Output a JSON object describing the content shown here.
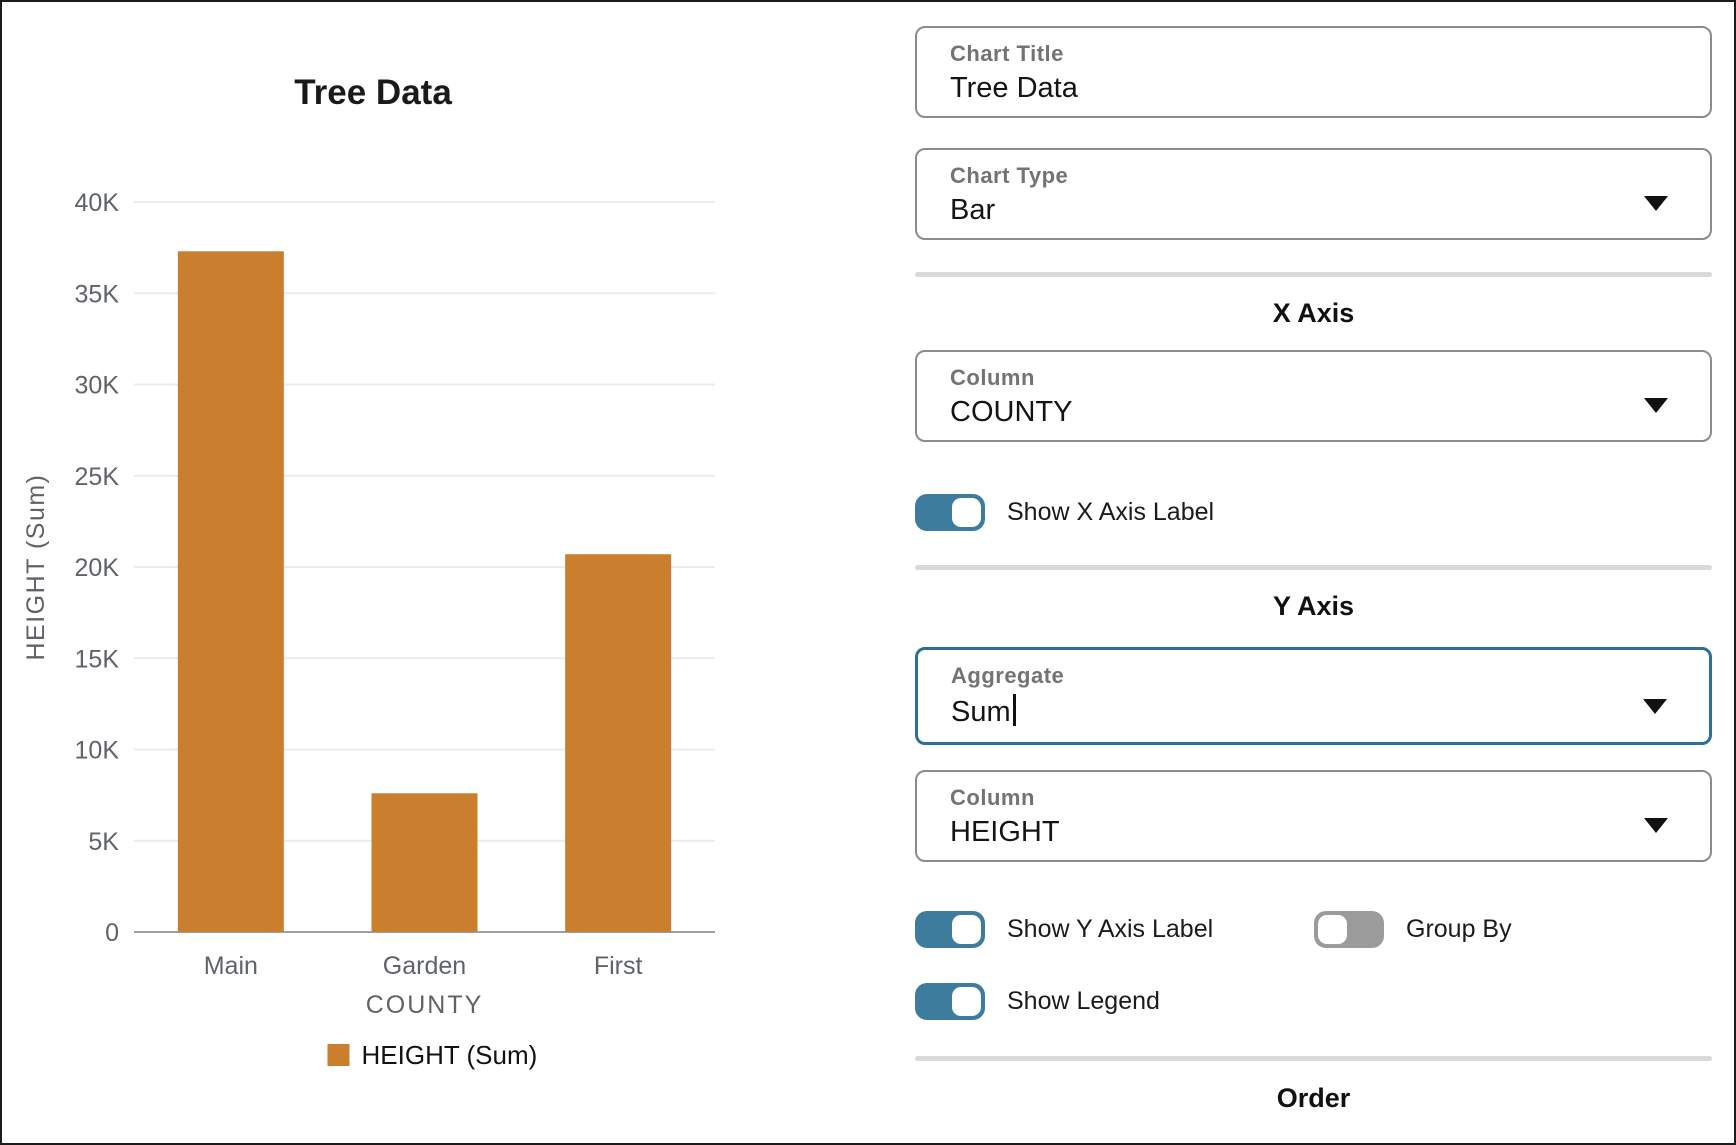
{
  "chart_data": {
    "type": "bar",
    "title": "Tree Data",
    "categories": [
      "Main",
      "Garden",
      "First"
    ],
    "series": [
      {
        "name": "HEIGHT (Sum)",
        "values": [
          37300,
          7600,
          20700
        ]
      }
    ],
    "xlabel": "COUNTY",
    "ylabel": "HEIGHT (Sum)",
    "ylim": [
      0,
      40000
    ],
    "ytick_step": 5000,
    "ytick_labels": [
      "0",
      "5K",
      "10K",
      "15K",
      "20K",
      "25K",
      "30K",
      "35K",
      "40K"
    ],
    "grid": true,
    "legend_position": "bottom",
    "bar_color": "#C97F2E",
    "grid_color": "#e9ebee",
    "axis_line_color": "#9aa0a6",
    "tick_label_color": "#5f6368",
    "title_color": "#1a1a1a",
    "legend_text_color": "#111111"
  },
  "panel": {
    "chart_title": {
      "label": "Chart Title",
      "value": "Tree Data"
    },
    "chart_type": {
      "label": "Chart Type",
      "value": "Bar"
    },
    "x_axis": {
      "heading": "X Axis",
      "column": {
        "label": "Column",
        "value": "COUNTY"
      },
      "show_label_toggle": {
        "label": "Show X Axis Label",
        "state": true
      }
    },
    "y_axis": {
      "heading": "Y Axis",
      "aggregate": {
        "label": "Aggregate",
        "value": "Sum",
        "focused": true
      },
      "column": {
        "label": "Column",
        "value": "HEIGHT"
      },
      "show_label_toggle": {
        "label": "Show Y Axis Label",
        "state": true
      },
      "group_by_toggle": {
        "label": "Group By",
        "state": false
      },
      "show_legend_toggle": {
        "label": "Show Legend",
        "state": true
      }
    },
    "order": {
      "heading": "Order"
    },
    "colors": {
      "toggle_on": "#3e7c9e",
      "toggle_off": "#9b9b9b",
      "focus_border": "#2e7093"
    }
  }
}
